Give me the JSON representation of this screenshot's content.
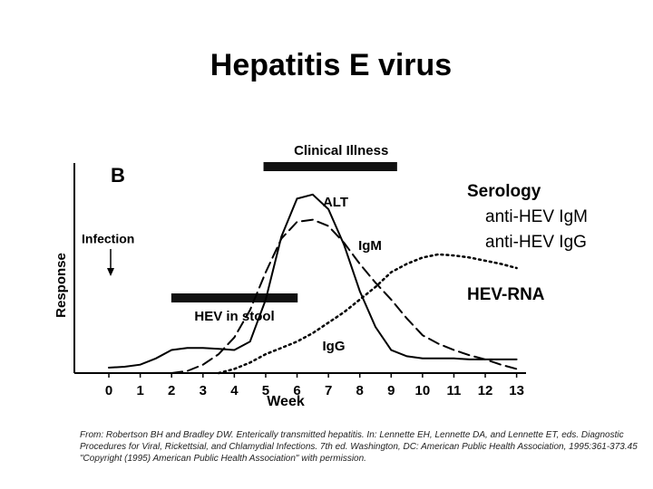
{
  "title": "Hepatitis E virus",
  "chart_data": {
    "type": "line",
    "panel_label": "B",
    "annotation": "Infection",
    "x_label": "Week",
    "y_label": "Response",
    "xlim": [
      -1.1,
      13.3
    ],
    "xticks": [
      0,
      1,
      2,
      3,
      4,
      5,
      6,
      7,
      8,
      9,
      10,
      11,
      12,
      13
    ],
    "ylim": [
      0,
      10
    ],
    "x": [
      0,
      0.5,
      1,
      1.5,
      2,
      2.5,
      3,
      3.5,
      4,
      4.5,
      5,
      5.5,
      6,
      6.5,
      7,
      7.5,
      8,
      8.5,
      9,
      9.5,
      10,
      10.5,
      11,
      11.5,
      12,
      12.5,
      13
    ],
    "series": [
      {
        "name": "ALT",
        "color": "#000000",
        "style": "solid",
        "values": [
          0.26,
          0.3,
          0.4,
          0.7,
          1.1,
          1.2,
          1.2,
          1.15,
          1.1,
          1.5,
          3.5,
          6.5,
          8.3,
          8.5,
          7.8,
          6.1,
          3.9,
          2.2,
          1.1,
          0.8,
          0.7,
          0.7,
          0.7,
          0.65,
          0.65,
          0.65,
          0.65
        ]
      },
      {
        "name": "IgM",
        "color": "#000000",
        "style": "dashed",
        "values": [
          null,
          null,
          null,
          null,
          0.0,
          0.1,
          0.4,
          0.9,
          1.7,
          3.0,
          4.8,
          6.4,
          7.2,
          7.3,
          7.0,
          6.2,
          5.2,
          4.3,
          3.5,
          2.6,
          1.8,
          1.4,
          1.1,
          0.85,
          0.65,
          0.4,
          0.2
        ]
      },
      {
        "name": "IgG",
        "color": "#000000",
        "style": "dotted",
        "values": [
          null,
          null,
          null,
          null,
          null,
          null,
          null,
          0,
          0.2,
          0.5,
          0.9,
          1.2,
          1.5,
          1.9,
          2.4,
          2.9,
          3.5,
          4.1,
          4.8,
          5.2,
          5.5,
          5.65,
          5.6,
          5.5,
          5.35,
          5.2,
          5.0
        ]
      }
    ],
    "periods": [
      {
        "label": "Clinical Illness",
        "start": 4.93,
        "end": 9.19
      },
      {
        "label": "HEV in stool",
        "start": 1.99,
        "end": 6.02
      }
    ]
  },
  "serology": {
    "heading": "Serology",
    "items": [
      "anti-HEV IgM",
      "anti-HEV IgG"
    ]
  },
  "hev_rna": "HEV-RNA",
  "source": "From: Robertson BH and Bradley DW. Enterically transmitted hepatitis. In: Lennette EH, Lennette DA, and Lennette ET, eds. Diagnostic Procedures for Viral, Rickettsial, and Chlamydial Infections. 7th ed. Washington, DC: American Public Health Association, 1995:361-373.45 \"Copyright (1995) American Public Health Association\" with permission."
}
